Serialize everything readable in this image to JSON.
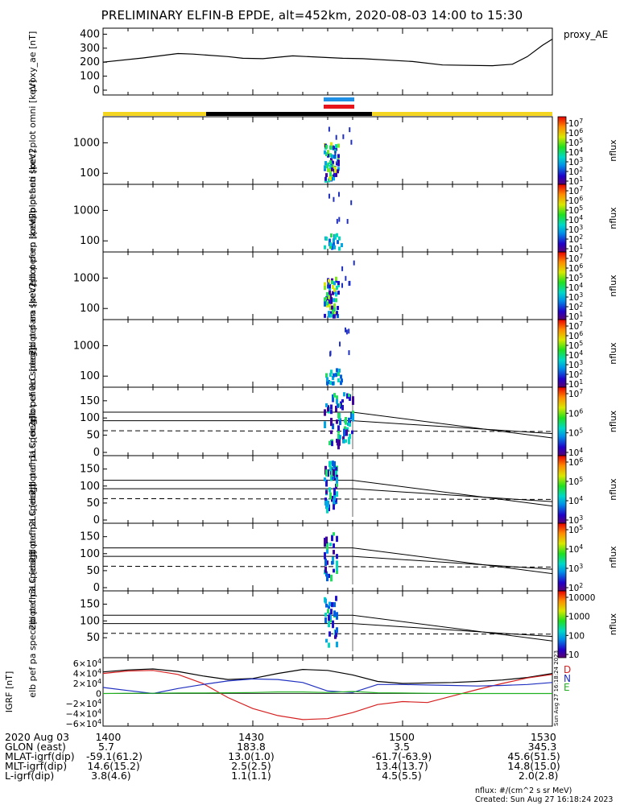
{
  "title": "PRELIMINARY ELFIN-B EPDE, alt=452km, 2020-08-03 14:00 to 15:30",
  "colors": {
    "trace": "#000000",
    "bar_yellow": "#f3d522",
    "bar_black": "#000000",
    "mark_blue": "#1e90e6",
    "mark_red": "#e8141c",
    "igrf_d": "#d62020",
    "igrf_n": "#2030c0",
    "igrf_e": "#20b020"
  },
  "chart_data": [
    {
      "id": "proxy_ae",
      "type": "line",
      "ylabel": "proxy_ae [nT]",
      "right_label": "proxy_AE",
      "ylim": [
        0,
        420
      ],
      "yticks": [
        "400",
        "300",
        "200",
        "100",
        "0"
      ],
      "x_minutes": [
        0,
        8,
        15,
        18,
        25,
        28,
        32,
        38,
        48,
        52,
        62,
        68,
        78,
        82,
        85,
        88,
        90
      ],
      "y": [
        200,
        230,
        262,
        258,
        240,
        228,
        225,
        245,
        228,
        225,
        205,
        180,
        175,
        185,
        240,
        320,
        365
      ]
    },
    {
      "id": "pef_en_omni",
      "type": "heatmap",
      "ylabel": "elb pef en spec2plot omni [keV]",
      "yscale": "log",
      "yticks": [
        "1000",
        "100"
      ],
      "colorbar_label": "nflux",
      "colorbar_ticks": [
        "10^7",
        "10^6",
        "10^5",
        "10^4",
        "10^3",
        "10^2",
        "10^1"
      ]
    },
    {
      "id": "pef_en_anti",
      "type": "heatmap",
      "ylabel": "elb pef en spec2plot anti [keV]",
      "yscale": "log",
      "yticks": [
        "1000",
        "100"
      ],
      "colorbar_label": "nflux",
      "colorbar_ticks": [
        "10^7",
        "10^6",
        "10^5",
        "10^4",
        "10^3",
        "10^2",
        "10^1"
      ]
    },
    {
      "id": "pef_en_perp",
      "type": "heatmap",
      "ylabel": "elb pef en spec2plot perp [keV]",
      "yscale": "log",
      "yticks": [
        "1000",
        "100"
      ],
      "colorbar_label": "nflux",
      "colorbar_ticks": [
        "10^7",
        "10^6",
        "10^5",
        "10^4",
        "10^3",
        "10^2",
        "10^1"
      ]
    },
    {
      "id": "pef_en_para",
      "type": "heatmap",
      "ylabel": "elb pef en spec2plot para [keV]",
      "yscale": "log",
      "yticks": [
        "1000",
        "100"
      ],
      "colorbar_label": "nflux",
      "colorbar_ticks": [
        "10^7",
        "10^6",
        "10^5",
        "10^4",
        "10^3",
        "10^2",
        "10^1"
      ]
    },
    {
      "id": "pef_pa_ch0LC",
      "type": "heatmap",
      "ylabel": "elb pef pa spec2plot ch0LC [deg]",
      "ylim": [
        0,
        180
      ],
      "yticks": [
        "150",
        "100",
        "50",
        "0"
      ],
      "colorbar_label": "nflux",
      "colorbar_ticks": [
        "10^7",
        "10^6",
        "10^5",
        "10^4"
      ]
    },
    {
      "id": "pef_pa_ch1LC",
      "type": "heatmap",
      "ylabel": "elb pef pa spec2plot ch1LC [deg]",
      "ylim": [
        0,
        180
      ],
      "yticks": [
        "150",
        "100",
        "50",
        "0"
      ],
      "colorbar_label": "nflux",
      "colorbar_ticks": [
        "10^6",
        "10^5",
        "10^4",
        "10^3"
      ]
    },
    {
      "id": "pef_pa_ch2LC",
      "type": "heatmap",
      "ylabel": "elb pef pa spec2plot ch2LC [deg]",
      "ylim": [
        0,
        180
      ],
      "yticks": [
        "150",
        "100",
        "50",
        "0"
      ],
      "colorbar_label": "nflux",
      "colorbar_ticks": [
        "10^5",
        "10^4",
        "10^3",
        "10^2"
      ]
    },
    {
      "id": "pef_pa_ch3LC",
      "type": "heatmap",
      "ylabel": "elb pef pa spec2plot ch3LC [deg]",
      "ylim": [
        0,
        180
      ],
      "yticks": [
        "150",
        "100",
        "50"
      ],
      "colorbar_label": "nflux",
      "colorbar_ticks": [
        "10000",
        "1000",
        "100",
        "10"
      ]
    },
    {
      "id": "igrf",
      "type": "line",
      "ylabel": "IGRF [nT]",
      "ylim": [
        -65000,
        65000
      ],
      "yticks": [
        "6×10^4",
        "4×10^4",
        "2×10^4",
        "0",
        "−2×10^4",
        "−4×10^4",
        "−6×10^4"
      ],
      "legend": [
        "D",
        "N",
        "E"
      ],
      "x_minutes": [
        0,
        5,
        10,
        15,
        20,
        25,
        30,
        35,
        40,
        45,
        50,
        55,
        60,
        65,
        70,
        75,
        80,
        85,
        90
      ],
      "series": [
        {
          "name": "",
          "color": "#000000",
          "values": [
            43000,
            47000,
            49000,
            44000,
            35000,
            28000,
            30000,
            40000,
            48000,
            46000,
            37000,
            24000,
            20000,
            21000,
            22000,
            24000,
            27000,
            32000,
            40000
          ]
        },
        {
          "name": "D",
          "color": "#d62020",
          "values": [
            40000,
            45000,
            46000,
            38000,
            20000,
            -8000,
            -30000,
            -44000,
            -52000,
            -50000,
            -38000,
            -22000,
            -16000,
            -18000,
            -5000,
            8000,
            20000,
            31000,
            38000
          ]
        },
        {
          "name": "N",
          "color": "#2030c0",
          "values": [
            12000,
            6000,
            0,
            10000,
            18000,
            25000,
            29000,
            28000,
            22000,
            5000,
            2000,
            18000,
            18000,
            17000,
            16000,
            15000,
            16000,
            18000,
            22000
          ]
        },
        {
          "name": "E",
          "color": "#20b020",
          "values": [
            0,
            500,
            500,
            1000,
            1000,
            1500,
            2000,
            3000,
            3000,
            2000,
            4000,
            1500,
            1000,
            500,
            0,
            0,
            0,
            0,
            0
          ]
        }
      ]
    }
  ],
  "footer": {
    "rows": [
      {
        "label": "2020 Aug 03",
        "values": [
          "1400",
          "1430",
          "1500",
          "1530"
        ]
      },
      {
        "label": "GLON (east)",
        "values": [
          "5.7",
          "183.8",
          "3.5",
          "345.3"
        ]
      },
      {
        "label": "MLAT-igrf(dip)",
        "values": [
          "-59.1(61.2)",
          "13.0(1.0)",
          "-61.7(-63.9)",
          "45.6(51.5)"
        ]
      },
      {
        "label": "MLT-igrf(dip)",
        "values": [
          "14.6(15.2)",
          "2.5(2.5)",
          "13.4(13.7)",
          "14.8(15.0)"
        ]
      },
      {
        "label": "L-igrf(dip)",
        "values": [
          "3.8(4.6)",
          "1.1(1.1)",
          "4.5(5.5)",
          "2.0(2.8)"
        ]
      }
    ],
    "units_note": "nflux: #/(cm^2 s sr MeV)",
    "created": "Created: Sun Aug 27 16:18:24 2023",
    "side_stamp": "Sun Aug 27 16:18:24 2023"
  }
}
